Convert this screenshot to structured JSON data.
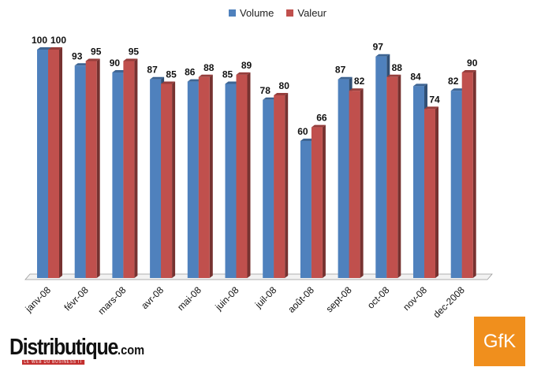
{
  "chart_data": {
    "type": "bar",
    "categories": [
      "janv-08",
      "févr-08",
      "mars-08",
      "avr-08",
      "mai-08",
      "juin-08",
      "juil-08",
      "août-08",
      "sept-08",
      "oct-08",
      "nov-08",
      "dec-2008"
    ],
    "series": [
      {
        "name": "Volume",
        "color": "#4f81bd",
        "values": [
          100,
          93,
          90,
          87,
          86,
          85,
          78,
          60,
          87,
          97,
          84,
          82
        ]
      },
      {
        "name": "Valeur",
        "color": "#c0504d",
        "values": [
          100,
          95,
          95,
          85,
          88,
          89,
          80,
          66,
          82,
          88,
          74,
          90
        ]
      }
    ],
    "ylim": [
      0,
      100
    ],
    "grid": false,
    "legend": "top-center",
    "three_d": true
  },
  "branding": {
    "publisher": "Distributique",
    "publisher_suffix": ".com",
    "publisher_tagline": "LE WEB DU BUSINESS IT",
    "gfk_logo": "GfK"
  }
}
